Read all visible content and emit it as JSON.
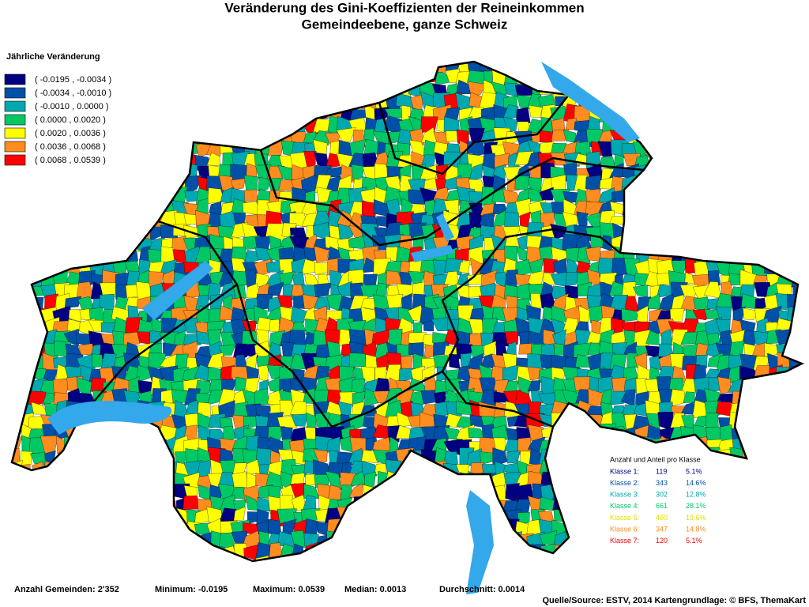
{
  "title": "Veränderung des Gini-Koeffizienten der Reineinkommen",
  "subtitle": "Gemeindeebene, ganze Schweiz",
  "legend": {
    "title": "Jährliche Veränderung",
    "items": [
      {
        "label": "( -0.0195 , -0.0034 )",
        "color": "#000080"
      },
      {
        "label": "( -0.0034 , -0.0010 )",
        "color": "#0050a8"
      },
      {
        "label": "( -0.0010 , 0.0000 )",
        "color": "#00a8b0"
      },
      {
        "label": "( 0.0000 , 0.0020 )",
        "color": "#00c864"
      },
      {
        "label": "( 0.0020 , 0.0036 )",
        "color": "#ffff00"
      },
      {
        "label": "( 0.0036 , 0.0068 )",
        "color": "#ff8c1e"
      },
      {
        "label": "( 0.0068 , 0.0539 )",
        "color": "#ff0000"
      }
    ]
  },
  "class_table": {
    "title": "Anzahl und Anteil pro Klasse",
    "rows": [
      [
        "Klasse 1:",
        "119",
        "5.1%"
      ],
      [
        "Klasse 2:",
        "343",
        "14.6%"
      ],
      [
        "Klasse 3:",
        "302",
        "12.8%"
      ],
      [
        "Klasse 4:",
        "661",
        "28.1%"
      ],
      [
        "Klasse 5:",
        "460",
        "19.6%"
      ],
      [
        "Klasse 6:",
        "347",
        "14.8%"
      ],
      [
        "Klasse 7:",
        "120",
        "5.1%"
      ]
    ]
  },
  "footer": {
    "count": "Anzahl Gemeinden: 2'352",
    "minimum": "Minimum: -0.0195",
    "maximum": "Maximum: 0.0539",
    "median": "Median: 0.0013",
    "mean": "Durchschnitt: 0.0014",
    "source": "Quelle/Source: ESTV, 2014 Kartengrundlage: © BFS, ThemaKart"
  }
}
